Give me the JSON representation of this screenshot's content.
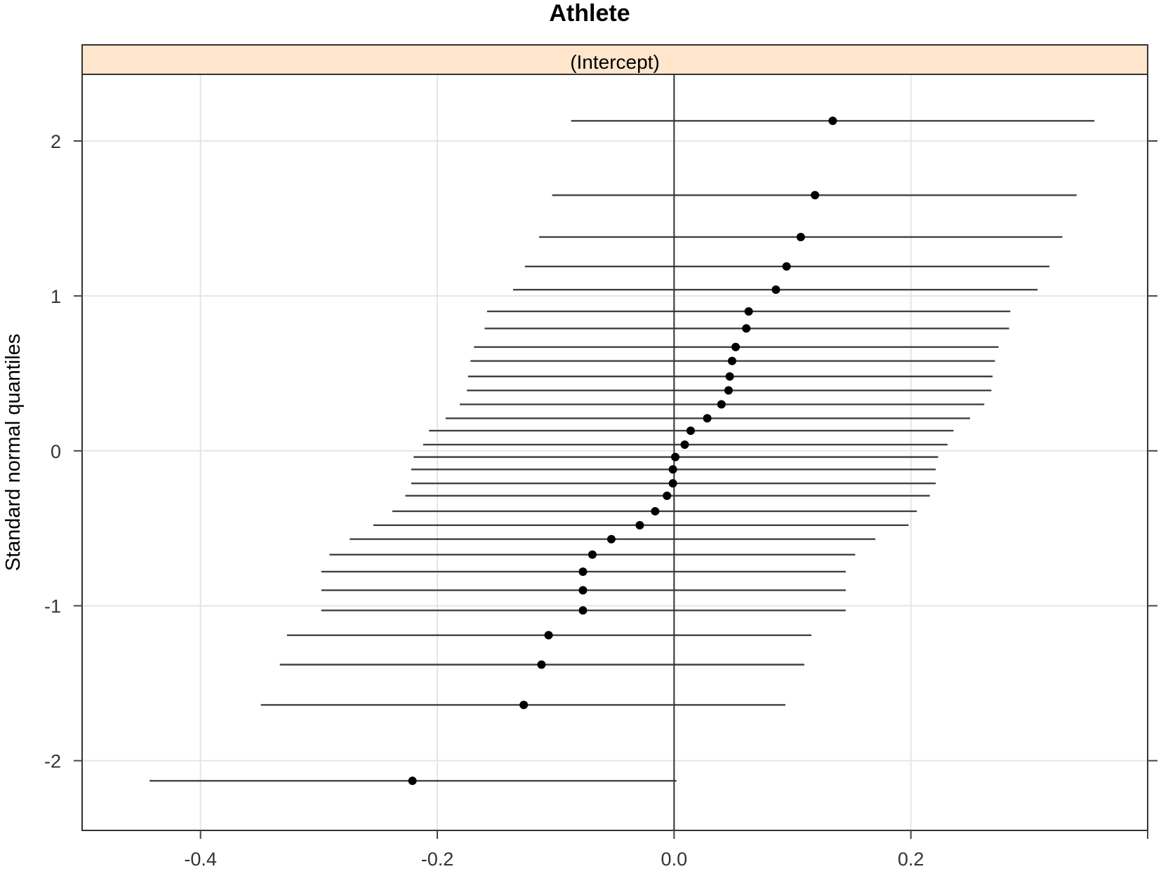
{
  "chart_data": {
    "type": "scatter",
    "title": "Athlete",
    "strip_label": "(Intercept)",
    "xlabel": "",
    "ylabel": "Standard normal quantiles",
    "xlim": [
      -0.5,
      0.4
    ],
    "ylim": [
      -2.45,
      2.43
    ],
    "x_ticks": [
      -0.4,
      -0.2,
      0.0,
      0.2
    ],
    "x_tick_labels": [
      "-0.4",
      "-0.2",
      "0.0",
      "0.2"
    ],
    "y_ticks": [
      -2,
      -1,
      0,
      1,
      2
    ],
    "y_tick_labels": [
      "-2",
      "-1",
      "0",
      "1",
      "2"
    ],
    "grid": true,
    "reference_line_x": 0.0,
    "colors": {
      "strip_fill": "#ffe5cc",
      "points": "#000000",
      "intervals": "#404040",
      "grid": "#e6e6e6",
      "axis": "#444444"
    },
    "points": [
      {
        "y": 2.13,
        "x": 0.134,
        "lower": -0.087,
        "upper": 0.355
      },
      {
        "y": 1.65,
        "x": 0.119,
        "lower": -0.103,
        "upper": 0.34
      },
      {
        "y": 1.38,
        "x": 0.107,
        "lower": -0.114,
        "upper": 0.328
      },
      {
        "y": 1.19,
        "x": 0.095,
        "lower": -0.126,
        "upper": 0.317
      },
      {
        "y": 1.04,
        "x": 0.086,
        "lower": -0.136,
        "upper": 0.307
      },
      {
        "y": 0.9,
        "x": 0.063,
        "lower": -0.158,
        "upper": 0.284
      },
      {
        "y": 0.79,
        "x": 0.061,
        "lower": -0.16,
        "upper": 0.283
      },
      {
        "y": 0.67,
        "x": 0.052,
        "lower": -0.169,
        "upper": 0.274
      },
      {
        "y": 0.58,
        "x": 0.049,
        "lower": -0.172,
        "upper": 0.271
      },
      {
        "y": 0.48,
        "x": 0.047,
        "lower": -0.174,
        "upper": 0.269
      },
      {
        "y": 0.39,
        "x": 0.046,
        "lower": -0.175,
        "upper": 0.268
      },
      {
        "y": 0.3,
        "x": 0.04,
        "lower": -0.181,
        "upper": 0.262
      },
      {
        "y": 0.21,
        "x": 0.028,
        "lower": -0.193,
        "upper": 0.25
      },
      {
        "y": 0.13,
        "x": 0.014,
        "lower": -0.207,
        "upper": 0.236
      },
      {
        "y": 0.04,
        "x": 0.009,
        "lower": -0.212,
        "upper": 0.231
      },
      {
        "y": -0.04,
        "x": 0.001,
        "lower": -0.22,
        "upper": 0.223
      },
      {
        "y": -0.12,
        "x": -0.001,
        "lower": -0.222,
        "upper": 0.221
      },
      {
        "y": -0.21,
        "x": -0.001,
        "lower": -0.222,
        "upper": 0.221
      },
      {
        "y": -0.29,
        "x": -0.006,
        "lower": -0.227,
        "upper": 0.216
      },
      {
        "y": -0.39,
        "x": -0.016,
        "lower": -0.238,
        "upper": 0.205
      },
      {
        "y": -0.48,
        "x": -0.029,
        "lower": -0.254,
        "upper": 0.198
      },
      {
        "y": -0.57,
        "x": -0.053,
        "lower": -0.274,
        "upper": 0.17
      },
      {
        "y": -0.67,
        "x": -0.069,
        "lower": -0.291,
        "upper": 0.153
      },
      {
        "y": -0.78,
        "x": -0.077,
        "lower": -0.298,
        "upper": 0.145
      },
      {
        "y": -0.9,
        "x": -0.077,
        "lower": -0.298,
        "upper": 0.145
      },
      {
        "y": -1.03,
        "x": -0.077,
        "lower": -0.298,
        "upper": 0.145
      },
      {
        "y": -1.19,
        "x": -0.106,
        "lower": -0.327,
        "upper": 0.116
      },
      {
        "y": -1.38,
        "x": -0.112,
        "lower": -0.333,
        "upper": 0.11
      },
      {
        "y": -1.64,
        "x": -0.127,
        "lower": -0.349,
        "upper": 0.094
      },
      {
        "y": -2.13,
        "x": -0.221,
        "lower": -0.443,
        "upper": 0.002
      }
    ]
  }
}
